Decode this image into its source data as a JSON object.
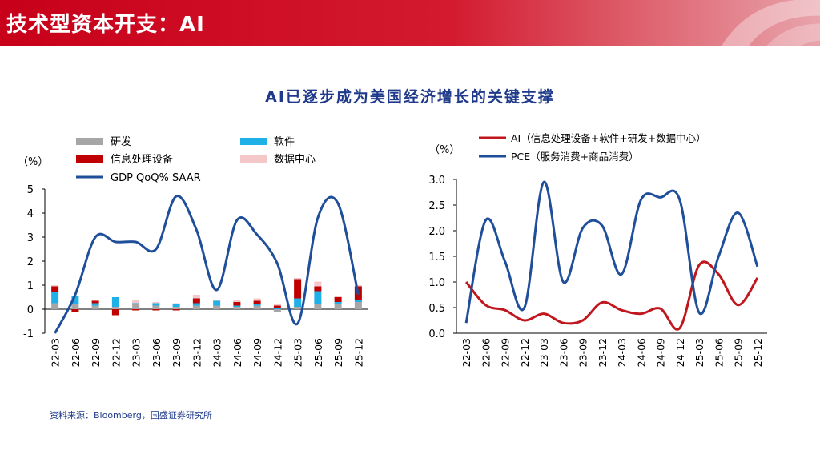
{
  "header": {
    "title": "技术型资本开支：AI"
  },
  "subtitle": "AI已逐步成为美国经济增长的关键支撑",
  "source": "资料来源：Bloomberg，国盛证券研究所",
  "colors": {
    "research": "#a6a6a6",
    "software": "#20b0e8",
    "equipment": "#c00000",
    "datacenter": "#f4c7c9",
    "gdp_line": "#1f4e9a",
    "ai_line": "#c0161e",
    "pce_line": "#1f4e9a"
  },
  "chart_data": [
    {
      "type": "bar+line",
      "unit_label": "（%）",
      "categories": [
        "22-03",
        "22-06",
        "22-09",
        "22-12",
        "23-03",
        "23-06",
        "23-09",
        "23-12",
        "24-03",
        "24-06",
        "24-09",
        "24-12",
        "25-03",
        "25-06",
        "25-09",
        "25-12"
      ],
      "ylim": [
        -1,
        5
      ],
      "yticks": [
        -1,
        0,
        1,
        2,
        3,
        4,
        5
      ],
      "legend": [
        "研发",
        "软件",
        "信息处理设备",
        "数据中心",
        "GDP QoQ% SAAR"
      ],
      "series": [
        {
          "name": "研发",
          "kind": "stacked-bar",
          "values": [
            0.25,
            0.2,
            0.15,
            0.1,
            0.2,
            0.15,
            0.1,
            0.15,
            0.15,
            0.1,
            0.15,
            -0.1,
            0.1,
            0.2,
            0.2,
            0.3
          ]
        },
        {
          "name": "软件",
          "kind": "stacked-bar",
          "values": [
            0.45,
            0.35,
            0.1,
            0.4,
            0.05,
            0.1,
            0.1,
            0.1,
            0.2,
            0.05,
            0.05,
            0.05,
            0.35,
            0.55,
            0.1,
            0.1
          ]
        },
        {
          "name": "信息处理设备",
          "kind": "stacked-bar",
          "values": [
            0.25,
            -0.1,
            0.1,
            -0.25,
            -0.05,
            -0.05,
            -0.05,
            0.2,
            0.0,
            0.15,
            0.15,
            0.1,
            0.8,
            0.2,
            0.2,
            0.55
          ]
        },
        {
          "name": "数据中心",
          "kind": "stacked-bar",
          "values": [
            0.05,
            0.0,
            0.05,
            0.0,
            0.15,
            0.05,
            0.05,
            0.15,
            0.05,
            0.1,
            0.1,
            0.05,
            0.05,
            0.2,
            0.05,
            0.05
          ]
        },
        {
          "name": "GDP QoQ% SAAR",
          "kind": "line",
          "values": [
            -1.0,
            0.6,
            3.0,
            2.8,
            2.8,
            2.5,
            4.7,
            3.3,
            0.8,
            3.7,
            3.1,
            1.9,
            -0.6,
            3.8,
            4.4,
            0.6
          ]
        }
      ]
    },
    {
      "type": "line",
      "unit_label": "（%）",
      "categories": [
        "22-03",
        "22-06",
        "22-09",
        "22-12",
        "23-03",
        "23-06",
        "23-09",
        "23-12",
        "24-03",
        "24-06",
        "24-09",
        "24-12",
        "25-03",
        "25-06",
        "25-09",
        "25-12"
      ],
      "ylim": [
        0.0,
        3.0
      ],
      "yticks": [
        "0.0",
        "0.5",
        "1.0",
        "1.5",
        "2.0",
        "2.5",
        "3.0"
      ],
      "legend": [
        "AI（信息处理设备+软件+研发+数据中心）",
        "PCE（服务消费+商品消费）"
      ],
      "series": [
        {
          "name": "AI（信息处理设备+软件+研发+数据中心）",
          "values": [
            1.0,
            0.55,
            0.45,
            0.25,
            0.38,
            0.2,
            0.25,
            0.6,
            0.45,
            0.38,
            0.48,
            0.1,
            1.33,
            1.15,
            0.55,
            1.08
          ]
        },
        {
          "name": "PCE（服务消费+商品消费）",
          "values": [
            0.2,
            2.2,
            1.4,
            0.5,
            2.95,
            1.0,
            2.05,
            2.1,
            1.15,
            2.6,
            2.65,
            2.6,
            0.4,
            1.5,
            2.35,
            1.3
          ]
        }
      ]
    }
  ]
}
